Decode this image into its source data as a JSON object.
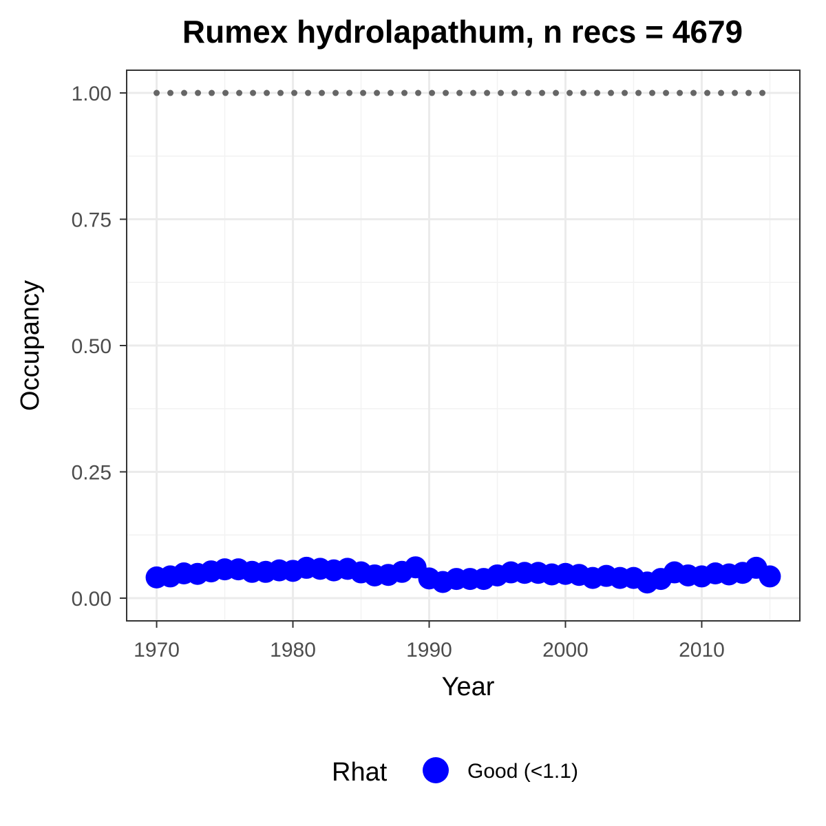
{
  "chart_data": {
    "type": "line",
    "title": "Rumex hydrolapathum, n recs = 4679",
    "xlabel": "Year",
    "ylabel": "Occupancy",
    "xlim": [
      1967.8,
      2017.2
    ],
    "ylim": [
      -0.045,
      1.045
    ],
    "x_ticks": [
      1970,
      1980,
      1990,
      2000,
      2010
    ],
    "x_tick_labels": [
      "1970",
      "1980",
      "1990",
      "2000",
      "2010"
    ],
    "y_ticks": [
      0,
      0.25,
      0.5,
      0.75,
      1.0
    ],
    "y_tick_labels": [
      "0.00",
      "0.25",
      "0.50",
      "0.75",
      "1.00"
    ],
    "grid": true,
    "legend": {
      "title": "Rhat",
      "placement": "bottom",
      "entries": [
        {
          "label": "Good (<1.1)",
          "color": "#0000ff"
        }
      ]
    },
    "x": [
      1970,
      1971,
      1972,
      1973,
      1974,
      1975,
      1976,
      1977,
      1978,
      1979,
      1980,
      1981,
      1982,
      1983,
      1984,
      1985,
      1986,
      1987,
      1988,
      1989,
      1990,
      1991,
      1992,
      1993,
      1994,
      1995,
      1996,
      1997,
      1998,
      1999,
      2000,
      2001,
      2002,
      2003,
      2004,
      2005,
      2006,
      2007,
      2008,
      2009,
      2010,
      2011,
      2012,
      2013,
      2014,
      2015
    ],
    "series": [
      {
        "color": "#0000ff",
        "style": "points-with-line",
        "values": [
          0.041,
          0.043,
          0.049,
          0.048,
          0.053,
          0.057,
          0.057,
          0.052,
          0.052,
          0.055,
          0.054,
          0.06,
          0.058,
          0.055,
          0.058,
          0.051,
          0.045,
          0.046,
          0.052,
          0.061,
          0.039,
          0.032,
          0.038,
          0.038,
          0.038,
          0.045,
          0.051,
          0.05,
          0.05,
          0.047,
          0.048,
          0.046,
          0.04,
          0.044,
          0.04,
          0.04,
          0.031,
          0.038,
          0.051,
          0.045,
          0.043,
          0.049,
          0.047,
          0.05,
          0.06,
          0.043
        ]
      },
      {
        "color": "#666666",
        "style": "dotted",
        "values": [
          1,
          1,
          1,
          1,
          1,
          1,
          1,
          1,
          1,
          1,
          1,
          1,
          1,
          1,
          1,
          1,
          1,
          1,
          1,
          1,
          1,
          1,
          1,
          1,
          1,
          1,
          1,
          1,
          1,
          1,
          1,
          1,
          1,
          1,
          1,
          1,
          1,
          1,
          1,
          1,
          1,
          1,
          1,
          1,
          1,
          1
        ]
      }
    ]
  }
}
